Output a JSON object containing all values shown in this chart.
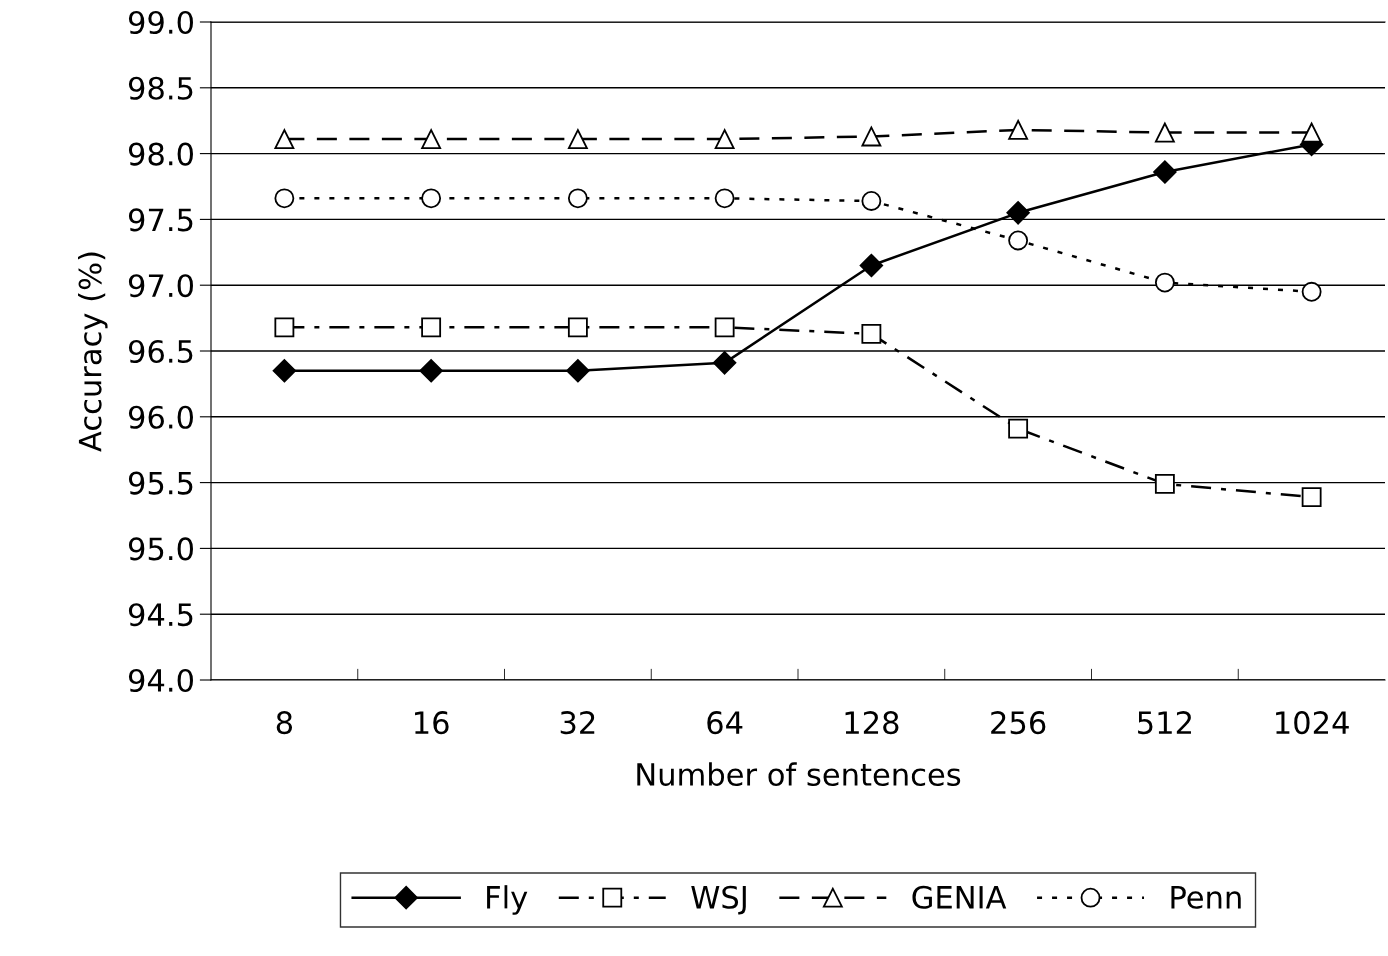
{
  "chart_data": {
    "type": "line",
    "xlabel": "Number of sentences",
    "ylabel": "Accuracy (%)",
    "categories": [
      "8",
      "16",
      "32",
      "64",
      "128",
      "256",
      "512",
      "1024"
    ],
    "series": [
      {
        "name": "Fly",
        "color": "#000000",
        "marker": "diamond",
        "line_style": "solid",
        "values": [
          96.35,
          96.35,
          96.35,
          96.41,
          97.15,
          97.55,
          97.86,
          98.07
        ]
      },
      {
        "name": "WSJ",
        "color": "#000000",
        "marker": "square",
        "line_style": "dashdot",
        "values": [
          96.68,
          96.68,
          96.68,
          96.68,
          96.63,
          95.91,
          95.49,
          95.39
        ]
      },
      {
        "name": "GENIA",
        "color": "#000000",
        "marker": "triangle",
        "line_style": "dashed",
        "values": [
          98.11,
          98.11,
          98.11,
          98.11,
          98.13,
          98.18,
          98.16,
          98.16
        ]
      },
      {
        "name": "Penn",
        "color": "#000000",
        "marker": "circle",
        "line_style": "dotted",
        "values": [
          97.66,
          97.66,
          97.66,
          97.66,
          97.64,
          97.34,
          97.02,
          96.95
        ]
      }
    ],
    "ylim": [
      94.0,
      99.0
    ],
    "yticks": [
      {
        "value": 94,
        "label": "94.0"
      },
      {
        "value": 94.5,
        "label": "94.5"
      },
      {
        "value": 95,
        "label": "95.0"
      },
      {
        "value": 95.5,
        "label": "95.5"
      },
      {
        "value": 96,
        "label": "96.0"
      },
      {
        "value": 96.5,
        "label": "96.5"
      },
      {
        "value": 97,
        "label": "97.0"
      },
      {
        "value": 97.5,
        "label": "97.5"
      },
      {
        "value": 98,
        "label": "98.0"
      },
      {
        "value": 98.5,
        "label": "98.5"
      },
      {
        "value": 99,
        "label": "99.0"
      }
    ],
    "grid": "y",
    "legend": "bottom"
  }
}
